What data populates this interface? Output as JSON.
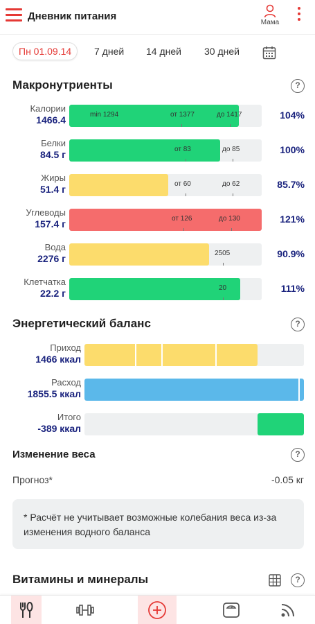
{
  "header": {
    "title": "Дневник питания",
    "profile_label": "Мама"
  },
  "date_tabs": {
    "active": "Пн 01.09.14",
    "tabs": [
      "7 дней",
      "14 дней",
      "30 дней"
    ]
  },
  "macros": {
    "title": "Макронутриенты",
    "rows": [
      {
        "label": "Калории",
        "value": "1466.4",
        "fill_fraction": 0.88,
        "percent": "104%",
        "color": "#20d378",
        "markers": [
          "min 1294",
          "от 1377",
          "до 1417"
        ]
      },
      {
        "label": "Белки",
        "value": "84.5 г",
        "fill_fraction": 0.785,
        "percent": "100%",
        "color": "#20d378",
        "markers": [
          "от 83",
          "до 85"
        ]
      },
      {
        "label": "Жиры",
        "value": "51.4 г",
        "fill_fraction": 0.515,
        "percent": "85.7%",
        "color": "#fcdc6c",
        "markers": [
          "от 60",
          "до 62"
        ]
      },
      {
        "label": "Углеводы",
        "value": "157.4 г",
        "fill_fraction": 1.0,
        "percent": "121%",
        "color": "#f56c6c",
        "markers": [
          "от 126",
          "до 130"
        ]
      },
      {
        "label": "Вода",
        "value": "2276 г",
        "fill_fraction": 0.725,
        "percent": "90.9%",
        "color": "#fcdc6c",
        "markers": [
          "2505"
        ]
      },
      {
        "label": "Клетчатка",
        "value": "22.2 г",
        "fill_fraction": 0.89,
        "percent": "111%",
        "color": "#20d378",
        "markers": [
          "20"
        ]
      }
    ]
  },
  "energy": {
    "title": "Энергетический баланс",
    "rows": [
      {
        "label": "Приход",
        "value": "1466 ккал",
        "color": "#fcdc6c",
        "fill_fraction": 0.79
      },
      {
        "label": "Расход",
        "value": "1855.5 ккал",
        "color": "#5bb8ea",
        "fill_fraction": 1.0
      },
      {
        "label": "Итого",
        "value": "-389 ккал",
        "color": "#20d378",
        "fill_fraction": 0.21
      }
    ]
  },
  "weight": {
    "title": "Изменение веса",
    "forecast_label": "Прогноз*",
    "forecast_value": "-0.05 кг",
    "note": "* Расчёт не учитывает возможные колебания веса из-за изменения водного баланса"
  },
  "vitamins": {
    "title": "Витамины и минералы"
  },
  "icons": {
    "menu": "hamburger-menu-icon",
    "profile": "person-icon",
    "more": "kebab-menu-icon",
    "calendar": "calendar-icon",
    "help": "help-circle-icon",
    "table": "table-icon",
    "nav": [
      "food-icon",
      "dumbbell-icon",
      "add-circle-icon",
      "scale-icon",
      "feed-icon"
    ]
  },
  "help_glyph": "?",
  "colors": {
    "accent": "#e53935",
    "value_text": "#1a237e"
  }
}
